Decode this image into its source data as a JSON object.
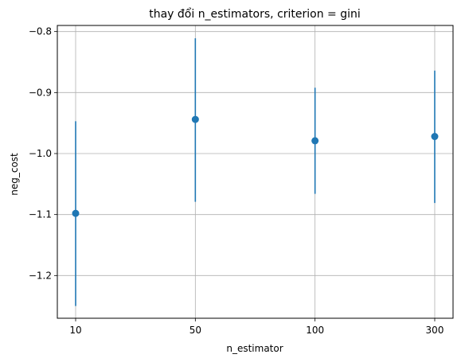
{
  "chart_data": {
    "type": "scatter",
    "title": "thay đổi n_estimators, criterion = gini",
    "xlabel": "n_estimator",
    "ylabel": "neg_cost",
    "categories": [
      "10",
      "50",
      "100",
      "300"
    ],
    "series": [
      {
        "values": [
          -1.098,
          -0.944,
          -0.979,
          -0.972
        ],
        "error_low": [
          -1.25,
          -1.079,
          -1.066,
          -1.081
        ],
        "error_high": [
          -0.947,
          -0.811,
          -0.892,
          -0.864
        ],
        "color": "#1f77b4"
      }
    ],
    "ylim": [
      -1.27,
      -0.79
    ],
    "yticks": [
      -1.2,
      -1.1,
      -1.0,
      -0.9,
      -0.8
    ],
    "ytick_labels": [
      "−1.2",
      "−1.1",
      "−1.0",
      "−0.9",
      "−0.8"
    ],
    "grid": true
  }
}
